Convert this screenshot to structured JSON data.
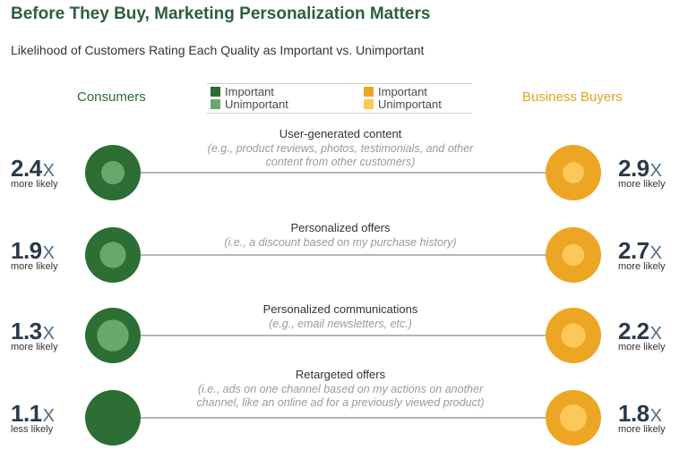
{
  "title": "Before They Buy, Marketing Personalization Matters",
  "subtitle": "Likelihood of Customers Rating Each Quality as Important vs. Unimportant",
  "consumers_label": "Consumers",
  "buyers_label": "Business Buyers",
  "legend": {
    "consumers_important": "Important",
    "consumers_unimportant": "Unimportant",
    "buyers_important": "Important",
    "buyers_unimportant": "Unimportant"
  },
  "colors": {
    "consumer_important": "#2c6e34",
    "consumer_unimportant": "#69a86b",
    "buyer_important": "#eda623",
    "buyer_unimportant": "#fdc75a"
  },
  "chart_data": {
    "type": "table",
    "title": "Before They Buy, Marketing Personalization Matters",
    "subtitle": "Likelihood of Customers Rating Each Quality as Important vs. Unimportant",
    "series": [
      "Consumers",
      "Business Buyers"
    ],
    "rows": [
      {
        "category": "User-generated content",
        "description": "(e.g., product reviews, photos, testimonials, and other content from other customers)",
        "desc_lines": [
          "(e.g., product reviews, photos, testimonials, and other",
          "content from other customers)"
        ],
        "consumers": {
          "value": "2.4",
          "unit": "X",
          "label": "more likely"
        },
        "buyers": {
          "value": "2.9",
          "unit": "X",
          "label": "more likely"
        }
      },
      {
        "category": "Personalized offers",
        "description": "(i.e., a discount based on my purchase history)",
        "desc_lines": [
          "(i.e., a discount based on my purchase history)"
        ],
        "consumers": {
          "value": "1.9",
          "unit": "X",
          "label": "more likely"
        },
        "buyers": {
          "value": "2.7",
          "unit": "X",
          "label": "more likely"
        }
      },
      {
        "category": "Personalized communications",
        "description": "(e.g., email newsletters, etc.)",
        "desc_lines": [
          "(e.g., email newsletters, etc.)"
        ],
        "consumers": {
          "value": "1.3",
          "unit": "X",
          "label": "more likely"
        },
        "buyers": {
          "value": "2.2",
          "unit": "X",
          "label": "more likely"
        }
      },
      {
        "category": "Retargeted offers",
        "description": "(i.e., ads on one channel based on my actions on another channel, like an online ad for a previously viewed product)",
        "desc_lines": [
          "(i.e., ads on one channel based on my actions on another",
          "channel, like an online ad for a previously viewed product)"
        ],
        "consumers": {
          "value": "1.1",
          "unit": "X",
          "label": "less likely"
        },
        "buyers": {
          "value": "1.8",
          "unit": "X",
          "label": "more likely"
        }
      }
    ]
  }
}
